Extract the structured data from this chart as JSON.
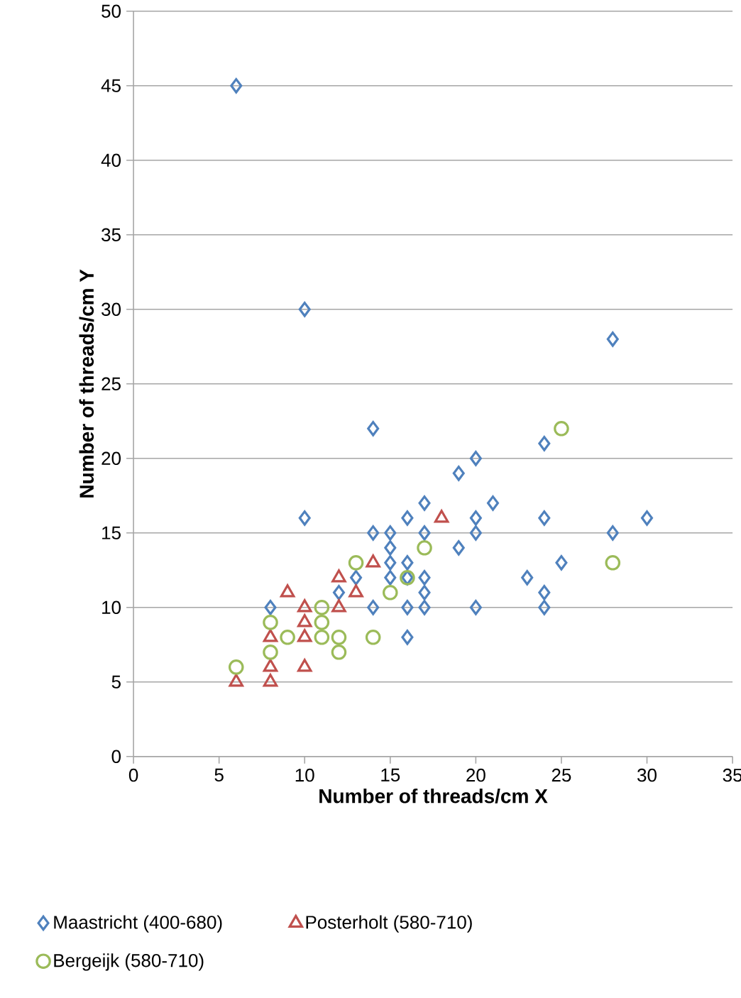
{
  "chart_data": {
    "type": "scatter",
    "xlabel": "Number of threads/cm X",
    "ylabel": "Number of threads/cm Y",
    "xlim": [
      0,
      35
    ],
    "ylim": [
      0,
      50
    ],
    "xticks": [
      0,
      5,
      10,
      15,
      20,
      25,
      30,
      35
    ],
    "yticks": [
      0,
      5,
      10,
      15,
      20,
      25,
      30,
      35,
      40,
      45,
      50
    ],
    "grid": "y",
    "legend": "bottom",
    "series": [
      {
        "name": "Maastricht (400-680)",
        "color": "#4f81bd",
        "marker": "diamond",
        "x": [
          6,
          10,
          28,
          14,
          24,
          19,
          20,
          24,
          30,
          28,
          25,
          23,
          24,
          24,
          20,
          17,
          21,
          20,
          19,
          20,
          17,
          17,
          10,
          14,
          15,
          16,
          17,
          15,
          16,
          17,
          16,
          16,
          14,
          15,
          15,
          16,
          8,
          12,
          13
        ],
        "values": [
          45,
          30,
          28,
          22,
          21,
          19,
          20,
          16,
          16,
          15,
          13,
          12,
          11,
          10,
          10,
          10,
          17,
          16,
          14,
          15,
          17,
          11,
          16,
          15,
          14,
          16,
          15,
          15,
          13,
          12,
          10,
          8,
          10,
          12,
          13,
          12,
          10,
          11,
          12
        ]
      },
      {
        "name": "Posterholt (580-710)",
        "color": "#c0504d",
        "marker": "triangle",
        "x": [
          6,
          8,
          8,
          8,
          9,
          10,
          10,
          10,
          12,
          12,
          14,
          13,
          18,
          10
        ],
        "values": [
          5,
          5,
          6,
          8,
          11,
          10,
          8,
          6,
          12,
          10,
          13,
          11,
          16,
          9
        ]
      },
      {
        "name": "Bergeijk (580-710)",
        "color": "#9bbb59",
        "marker": "circle",
        "x": [
          6,
          8,
          8,
          9,
          11,
          11,
          12,
          12,
          13,
          14,
          16,
          17,
          25,
          28,
          11,
          15
        ],
        "values": [
          6,
          9,
          7,
          8,
          9,
          8,
          8,
          7,
          13,
          8,
          12,
          14,
          22,
          13,
          10,
          11
        ]
      }
    ]
  }
}
